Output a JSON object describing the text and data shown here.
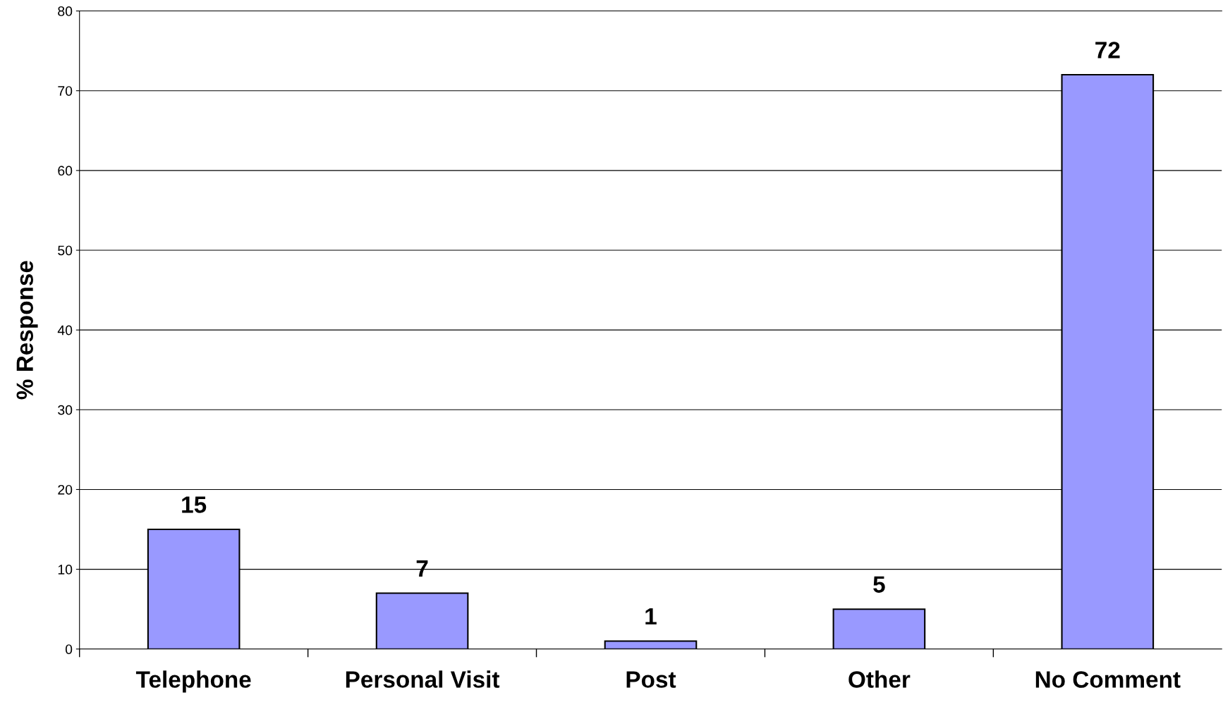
{
  "chart_data": {
    "type": "bar",
    "ylabel": "% Response",
    "categories": [
      "Telephone",
      "Personal Visit",
      "Post",
      "Other",
      "No Comment"
    ],
    "values": [
      15,
      7,
      1,
      5,
      72
    ],
    "color": "#9999ff",
    "ylim": [
      0,
      80
    ],
    "yticks": [
      0,
      10,
      20,
      30,
      40,
      50,
      60,
      70,
      80
    ],
    "grid": "y",
    "data_labels": true,
    "legend": false
  }
}
